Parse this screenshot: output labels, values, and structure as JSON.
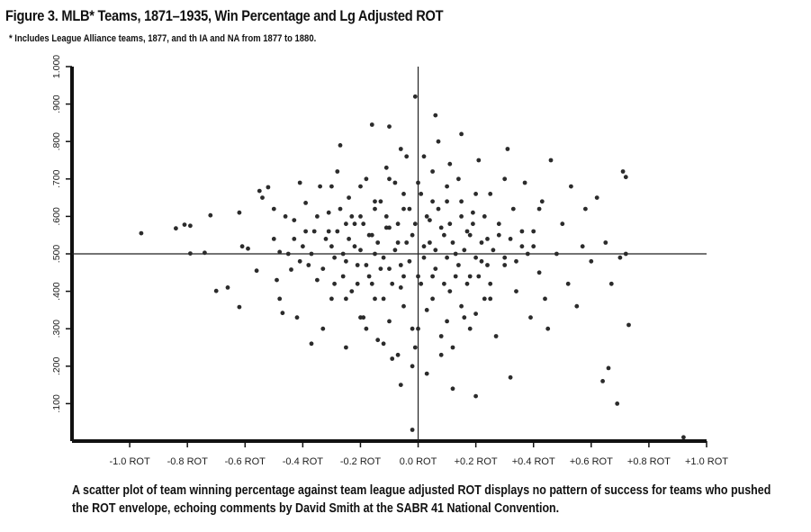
{
  "figure": {
    "title": "Figure 3. MLB* Teams, 1871–1935, Win Percentage and Lg Adjusted ROT",
    "footnote": "* Includes League Alliance teams, 1877, and th IA and NA from 1877 to 1880.",
    "caption": "A scatter plot of team winning percentage against team league adjusted ROT displays no pattern of success for teams who pushed the ROT envelope, echoing comments by David Smith at the SABR 41 National Convention."
  },
  "chart_data": {
    "type": "scatter",
    "xlim": [
      -1.2,
      1.0
    ],
    "ylim": [
      0.0,
      1.0
    ],
    "x_ticks": [
      {
        "value": -1.0,
        "label": "-1.0 ROT"
      },
      {
        "value": -0.8,
        "label": "-0.8 ROT"
      },
      {
        "value": -0.6,
        "label": "-0.6 ROT"
      },
      {
        "value": -0.4,
        "label": "-0.4 ROT"
      },
      {
        "value": -0.2,
        "label": "-0.2 ROT"
      },
      {
        "value": 0.0,
        "label": "0.0 ROT"
      },
      {
        "value": 0.2,
        "label": "+0.2 ROT"
      },
      {
        "value": 0.4,
        "label": "+0.4 ROT"
      },
      {
        "value": 0.6,
        "label": "+0.6 ROT"
      },
      {
        "value": 0.8,
        "label": "+0.8 ROT"
      },
      {
        "value": 1.0,
        "label": "+1.0 ROT"
      }
    ],
    "y_ticks": [
      {
        "value": 0.1,
        "label": ".100"
      },
      {
        "value": 0.2,
        "label": ".200"
      },
      {
        "value": 0.3,
        "label": ".300"
      },
      {
        "value": 0.4,
        "label": ".400"
      },
      {
        "value": 0.5,
        "label": ".500"
      },
      {
        "value": 0.6,
        "label": ".600"
      },
      {
        "value": 0.7,
        "label": ".700"
      },
      {
        "value": 0.8,
        "label": ".800"
      },
      {
        "value": 0.9,
        "label": ".900"
      },
      {
        "value": 1.0,
        "label": "1.000"
      }
    ],
    "reference_lines": {
      "x": 0.0,
      "y": 0.5
    },
    "grid": false,
    "legend": "none",
    "point_color": "#2b2b2b",
    "points": [
      [
        -0.96,
        0.555
      ],
      [
        -0.84,
        0.568
      ],
      [
        -0.81,
        0.578
      ],
      [
        -0.79,
        0.575
      ],
      [
        -0.79,
        0.501
      ],
      [
        -0.74,
        0.503
      ],
      [
        -0.72,
        0.603
      ],
      [
        -0.7,
        0.401
      ],
      [
        -0.66,
        0.41
      ],
      [
        -0.62,
        0.358
      ],
      [
        -0.62,
        0.61
      ],
      [
        -0.61,
        0.52
      ],
      [
        -0.59,
        0.514
      ],
      [
        -0.56,
        0.455
      ],
      [
        -0.55,
        0.668
      ],
      [
        -0.54,
        0.65
      ],
      [
        -0.52,
        0.678
      ],
      [
        -0.5,
        0.54
      ],
      [
        -0.49,
        0.43
      ],
      [
        -0.48,
        0.505
      ],
      [
        -0.47,
        0.342
      ],
      [
        -0.46,
        0.6
      ],
      [
        -0.44,
        0.458
      ],
      [
        -0.43,
        0.59
      ],
      [
        -0.42,
        0.33
      ],
      [
        -0.41,
        0.69
      ],
      [
        -0.4,
        0.52
      ],
      [
        -0.39,
        0.636
      ],
      [
        -0.38,
        0.47
      ],
      [
        -0.37,
        0.26
      ],
      [
        -0.36,
        0.56
      ],
      [
        -0.35,
        0.43
      ],
      [
        -0.34,
        0.68
      ],
      [
        -0.33,
        0.3
      ],
      [
        -0.32,
        0.54
      ],
      [
        -0.31,
        0.61
      ],
      [
        -0.3,
        0.38
      ],
      [
        -0.29,
        0.49
      ],
      [
        -0.28,
        0.72
      ],
      [
        -0.27,
        0.79
      ],
      [
        -0.26,
        0.44
      ],
      [
        -0.25,
        0.25
      ],
      [
        -0.25,
        0.58
      ],
      [
        -0.24,
        0.65
      ],
      [
        -0.23,
        0.4
      ],
      [
        -0.22,
        0.52
      ],
      [
        -0.21,
        0.47
      ],
      [
        -0.2,
        0.6
      ],
      [
        -0.19,
        0.33
      ],
      [
        -0.18,
        0.7
      ],
      [
        -0.17,
        0.55
      ],
      [
        -0.16,
        0.845
      ],
      [
        -0.16,
        0.42
      ],
      [
        -0.15,
        0.5
      ],
      [
        -0.14,
        0.27
      ],
      [
        -0.13,
        0.64
      ],
      [
        -0.12,
        0.38
      ],
      [
        -0.11,
        0.57
      ],
      [
        -0.1,
        0.46
      ],
      [
        -0.1,
        0.84
      ],
      [
        -0.09,
        0.22
      ],
      [
        -0.08,
        0.69
      ],
      [
        -0.07,
        0.53
      ],
      [
        -0.06,
        0.15
      ],
      [
        -0.06,
        0.41
      ],
      [
        -0.05,
        0.62
      ],
      [
        -0.04,
        0.76
      ],
      [
        -0.03,
        0.48
      ],
      [
        -0.02,
        0.3
      ],
      [
        -0.01,
        0.58
      ],
      [
        -0.01,
        0.92
      ],
      [
        -0.01,
        0.25
      ],
      [
        -0.02,
        0.03
      ],
      [
        0.0,
        0.44
      ],
      [
        0.01,
        0.66
      ],
      [
        0.02,
        0.52
      ],
      [
        0.03,
        0.35
      ],
      [
        0.04,
        0.59
      ],
      [
        0.05,
        0.72
      ],
      [
        0.06,
        0.46
      ],
      [
        0.07,
        0.8
      ],
      [
        0.08,
        0.28
      ],
      [
        0.09,
        0.55
      ],
      [
        0.1,
        0.64
      ],
      [
        0.11,
        0.4
      ],
      [
        0.12,
        0.14
      ],
      [
        0.13,
        0.5
      ],
      [
        0.14,
        0.7
      ],
      [
        0.15,
        0.82
      ],
      [
        0.16,
        0.33
      ],
      [
        0.17,
        0.56
      ],
      [
        0.18,
        0.44
      ],
      [
        0.19,
        0.61
      ],
      [
        0.2,
        0.12
      ],
      [
        0.21,
        0.75
      ],
      [
        0.22,
        0.48
      ],
      [
        0.23,
        0.38
      ],
      [
        0.24,
        0.54
      ],
      [
        0.25,
        0.66
      ],
      [
        0.27,
        0.28
      ],
      [
        0.28,
        0.58
      ],
      [
        0.3,
        0.47
      ],
      [
        0.31,
        0.78
      ],
      [
        0.32,
        0.17
      ],
      [
        0.33,
        0.62
      ],
      [
        0.34,
        0.4
      ],
      [
        0.36,
        0.52
      ],
      [
        0.37,
        0.69
      ],
      [
        0.39,
        0.33
      ],
      [
        0.4,
        0.56
      ],
      [
        0.42,
        0.45
      ],
      [
        0.43,
        0.64
      ],
      [
        0.45,
        0.3
      ],
      [
        0.46,
        0.75
      ],
      [
        0.48,
        0.5
      ],
      [
        0.5,
        0.58
      ],
      [
        0.52,
        0.42
      ],
      [
        0.53,
        0.68
      ],
      [
        0.55,
        0.36
      ],
      [
        0.57,
        0.52
      ],
      [
        0.58,
        0.62
      ],
      [
        0.6,
        0.48
      ],
      [
        0.62,
        0.65
      ],
      [
        0.64,
        0.16
      ],
      [
        0.65,
        0.53
      ],
      [
        0.66,
        0.195
      ],
      [
        0.67,
        0.42
      ],
      [
        0.69,
        0.1
      ],
      [
        0.7,
        0.49
      ],
      [
        0.71,
        0.72
      ],
      [
        0.72,
        0.705
      ],
      [
        0.72,
        0.5
      ],
      [
        0.73,
        0.31
      ],
      [
        0.92,
        0.01
      ],
      [
        -0.3,
        0.52
      ],
      [
        -0.28,
        0.56
      ],
      [
        -0.26,
        0.5
      ],
      [
        -0.24,
        0.54
      ],
      [
        -0.22,
        0.58
      ],
      [
        -0.2,
        0.51
      ],
      [
        -0.18,
        0.47
      ],
      [
        -0.16,
        0.55
      ],
      [
        -0.14,
        0.53
      ],
      [
        -0.12,
        0.49
      ],
      [
        -0.1,
        0.57
      ],
      [
        -0.08,
        0.51
      ],
      [
        -0.06,
        0.47
      ],
      [
        -0.04,
        0.53
      ],
      [
        -0.02,
        0.55
      ],
      [
        0.02,
        0.49
      ],
      [
        0.04,
        0.53
      ],
      [
        0.06,
        0.51
      ],
      [
        0.08,
        0.57
      ],
      [
        0.1,
        0.49
      ],
      [
        0.12,
        0.53
      ],
      [
        0.14,
        0.47
      ],
      [
        0.16,
        0.51
      ],
      [
        0.18,
        0.55
      ],
      [
        0.2,
        0.49
      ],
      [
        0.22,
        0.53
      ],
      [
        0.24,
        0.47
      ],
      [
        0.26,
        0.51
      ],
      [
        0.28,
        0.55
      ],
      [
        0.3,
        0.49
      ],
      [
        -0.35,
        0.6
      ],
      [
        -0.33,
        0.46
      ],
      [
        -0.31,
        0.56
      ],
      [
        -0.29,
        0.42
      ],
      [
        -0.27,
        0.62
      ],
      [
        -0.25,
        0.48
      ],
      [
        -0.23,
        0.6
      ],
      [
        -0.21,
        0.42
      ],
      [
        -0.19,
        0.58
      ],
      [
        -0.17,
        0.44
      ],
      [
        -0.15,
        0.62
      ],
      [
        -0.13,
        0.46
      ],
      [
        -0.11,
        0.6
      ],
      [
        -0.09,
        0.42
      ],
      [
        -0.07,
        0.58
      ],
      [
        -0.05,
        0.44
      ],
      [
        -0.03,
        0.62
      ],
      [
        0.01,
        0.42
      ],
      [
        0.03,
        0.6
      ],
      [
        0.05,
        0.44
      ],
      [
        0.07,
        0.62
      ],
      [
        0.09,
        0.42
      ],
      [
        0.11,
        0.58
      ],
      [
        0.13,
        0.44
      ],
      [
        0.15,
        0.6
      ],
      [
        0.17,
        0.42
      ],
      [
        0.19,
        0.58
      ],
      [
        0.21,
        0.44
      ],
      [
        0.23,
        0.6
      ],
      [
        0.25,
        0.42
      ],
      [
        -0.45,
        0.5
      ],
      [
        -0.43,
        0.54
      ],
      [
        -0.41,
        0.48
      ],
      [
        -0.39,
        0.56
      ],
      [
        -0.37,
        0.5
      ],
      [
        0.32,
        0.54
      ],
      [
        0.34,
        0.48
      ],
      [
        0.36,
        0.56
      ],
      [
        0.38,
        0.5
      ],
      [
        0.4,
        0.52
      ],
      [
        -0.5,
        0.62
      ],
      [
        -0.48,
        0.38
      ],
      [
        0.42,
        0.62
      ],
      [
        0.44,
        0.38
      ],
      [
        -0.2,
        0.68
      ],
      [
        -0.1,
        0.7
      ],
      [
        0.0,
        0.69
      ],
      [
        0.1,
        0.68
      ],
      [
        0.2,
        0.66
      ],
      [
        -0.2,
        0.33
      ],
      [
        -0.1,
        0.32
      ],
      [
        0.0,
        0.3
      ],
      [
        0.1,
        0.32
      ],
      [
        0.2,
        0.34
      ],
      [
        -0.15,
        0.38
      ],
      [
        -0.05,
        0.36
      ],
      [
        0.05,
        0.38
      ],
      [
        0.15,
        0.36
      ],
      [
        -0.25,
        0.38
      ],
      [
        0.25,
        0.38
      ],
      [
        -0.15,
        0.64
      ],
      [
        -0.05,
        0.66
      ],
      [
        0.05,
        0.64
      ],
      [
        0.15,
        0.64
      ],
      [
        -0.02,
        0.2
      ],
      [
        0.03,
        0.18
      ],
      [
        -0.07,
        0.23
      ],
      [
        0.08,
        0.23
      ],
      [
        -0.12,
        0.26
      ],
      [
        0.12,
        0.25
      ],
      [
        0.18,
        0.3
      ],
      [
        -0.18,
        0.3
      ],
      [
        0.06,
        0.87
      ],
      [
        -0.06,
        0.78
      ],
      [
        0.02,
        0.76
      ],
      [
        0.11,
        0.74
      ],
      [
        -0.11,
        0.73
      ],
      [
        0.3,
        0.7
      ],
      [
        -0.3,
        0.68
      ]
    ]
  }
}
